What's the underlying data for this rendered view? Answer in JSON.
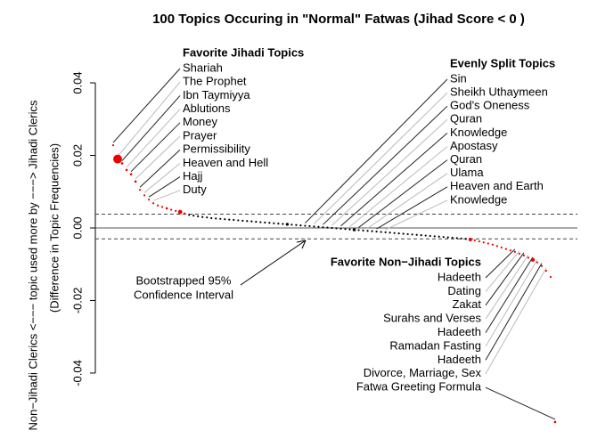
{
  "chart_data": {
    "type": "scatter",
    "title": "100 Topics Occuring in \"Normal\" Fatwas (Jihad Score < 0 )",
    "y_label": "Non−Jihadi Clerics <−−−  topic used more by  −−−> Jihadi Clerics",
    "y_label_2": "(Difference in Topic Frequencies)",
    "ylim": [
      -0.054,
      0.047
    ],
    "yticks": [
      -0.04,
      -0.02,
      {
        "value": 0,
        "label": "0.00"
      },
      0.02,
      0.04
    ],
    "ci": [
      -0.003,
      0.0038
    ],
    "ci_label": [
      "Bootstrapped 95%",
      "Confidence Interval"
    ],
    "color_inside": "#000000",
    "color_outside": "#ee0000",
    "values": [
      0.0228,
      0.019,
      0.0178,
      0.016,
      0.0148,
      0.0128,
      0.0105,
      0.009,
      0.0078,
      0.0068,
      0.0062,
      0.0058,
      0.0054,
      0.005,
      0.0047,
      0.0044,
      0.004,
      0.0036,
      0.0034,
      0.0032,
      0.003,
      0.0029,
      0.0027,
      0.0026,
      0.0025,
      0.0024,
      0.0023,
      0.0022,
      0.0021,
      0.002,
      0.0019,
      0.0018,
      0.0017,
      0.0016,
      0.0015,
      0.0014,
      0.0013,
      0.0012,
      0.0011,
      0.001,
      0.0009,
      0.0008,
      0.0007,
      0.0006,
      0.0005,
      0.0004,
      0.0003,
      0.0002,
      0.0001,
      0.0,
      -0.0001,
      -0.0002,
      -0.0003,
      -0.0004,
      -0.0005,
      -0.0006,
      -0.0007,
      -0.0008,
      -0.0009,
      -0.001,
      -0.0011,
      -0.0012,
      -0.0013,
      -0.0014,
      -0.0015,
      -0.0016,
      -0.0017,
      -0.0018,
      -0.0019,
      -0.002,
      -0.0021,
      -0.0022,
      -0.0023,
      -0.0024,
      -0.0025,
      -0.0026,
      -0.0027,
      -0.0028,
      -0.0029,
      -0.003,
      -0.0032,
      -0.0034,
      -0.0037,
      -0.004,
      -0.0043,
      -0.0046,
      -0.005,
      -0.0054,
      -0.0058,
      -0.0062,
      -0.0066,
      -0.0071,
      -0.0076,
      -0.0082,
      -0.0088,
      -0.0095,
      -0.0105,
      -0.0118,
      -0.0135,
      -0.0535
    ],
    "sizes": [
      1,
      4.5,
      1.2,
      1.2,
      1.2,
      1.2,
      1,
      1,
      1,
      1,
      1,
      1,
      1.2,
      1,
      1,
      2.2,
      1,
      1,
      1,
      1,
      1,
      1,
      1,
      1,
      1,
      1,
      1,
      1,
      1,
      1,
      1,
      1,
      1,
      1,
      1,
      1,
      1,
      1,
      1,
      1.5,
      1,
      1,
      1,
      1,
      1,
      1,
      1,
      1,
      1,
      1,
      1,
      1,
      1,
      1,
      1.6,
      1,
      1,
      1,
      1,
      1,
      1,
      1,
      1,
      1,
      1,
      1,
      1,
      1,
      1,
      1,
      1,
      1,
      1,
      1,
      1,
      1,
      1,
      1,
      1,
      1,
      1.8,
      1,
      1,
      1,
      1,
      1,
      1,
      1,
      1,
      1,
      1,
      1,
      1,
      1,
      2,
      1,
      1,
      1,
      1,
      1.2
    ],
    "annotations": [
      {
        "title": "Favorite Jihadi Topics",
        "labels": [
          "Shariah",
          "The Prophet",
          "Ibn Taymiyya",
          "Ablutions",
          "Money",
          "Prayer",
          "Permissibility",
          "Heaven and Hell",
          "Hajj",
          "Duty"
        ]
      },
      {
        "title": "Evenly Split Topics",
        "labels": [
          "Sin",
          "Sheikh Uthaymeen",
          "God's Oneness",
          "Quran",
          "Knowledge",
          "Apostasy",
          "Quran",
          "Ulama",
          "Heaven and Earth",
          "Knowledge"
        ]
      },
      {
        "title": "Favorite Non−Jihadi Topics",
        "labels": [
          "Hadeeth",
          "Dating",
          "Zakat",
          "Surahs and Verses",
          "Hadeeth",
          "Ramadan Fasting",
          "Hadeeth",
          "Divorce, Marriage, Sex",
          "Fatwa Greeting Formula"
        ]
      }
    ]
  }
}
